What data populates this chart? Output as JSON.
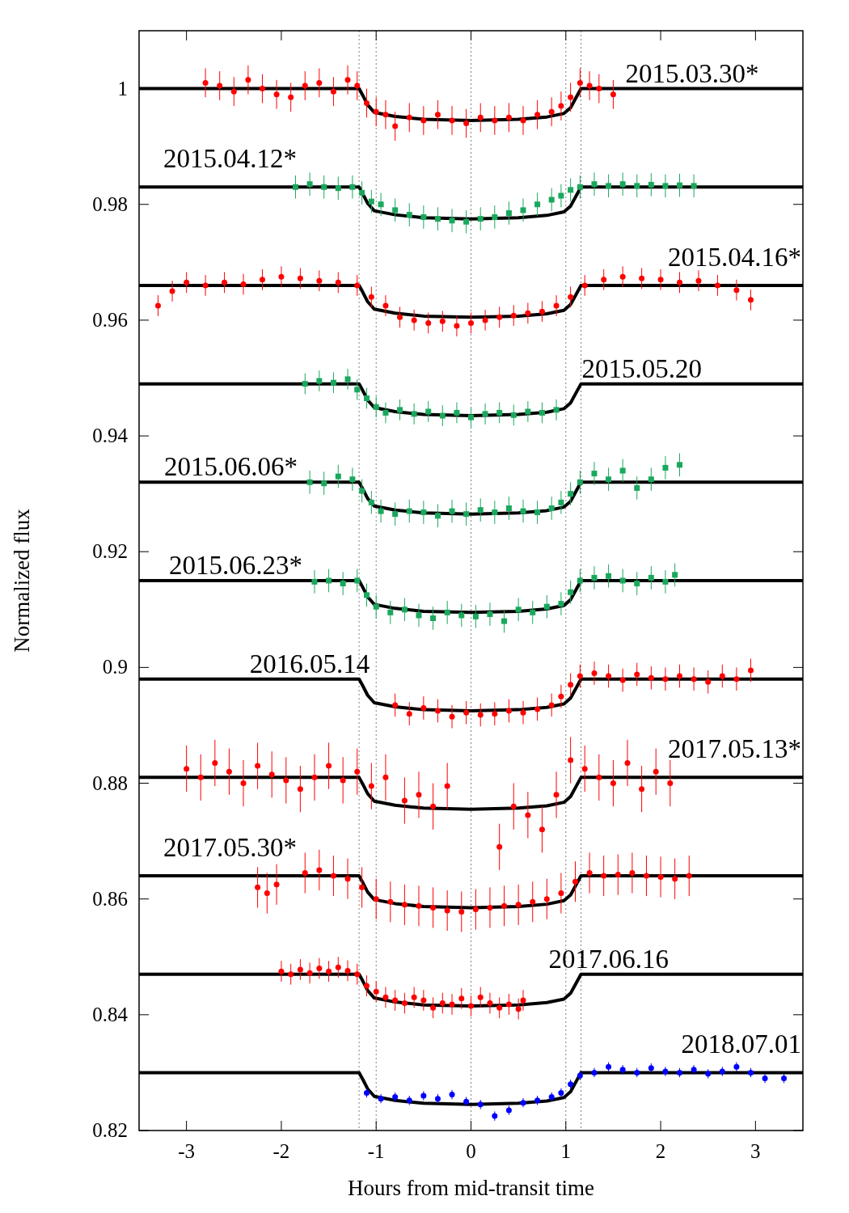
{
  "chart_data": {
    "type": "scatter",
    "xlabel": "Hours from mid-transit time",
    "ylabel": "Normalized flux",
    "xlim": [
      -3.5,
      3.5
    ],
    "ylim": [
      0.82,
      1.01
    ],
    "xticks": [
      -3,
      -2,
      -1,
      0,
      1,
      2,
      3
    ],
    "yticks": [
      0.82,
      0.84,
      0.86,
      0.88,
      0.9,
      0.92,
      0.94,
      0.96,
      0.98,
      1
    ],
    "grid": false,
    "legend": false,
    "marker": "circle",
    "x": [
      -3.5,
      -1.18,
      -1.14,
      -1.09,
      -1.02,
      -0.8,
      -0.5,
      0,
      0.5,
      0.8,
      0.98,
      1.05,
      1.11,
      1.16,
      3.5
    ],
    "ref_lines": [
      {
        "axis": "x",
        "value": -1.18,
        "color": "#808080",
        "line_style": "dotted"
      },
      {
        "axis": "x",
        "value": -1,
        "color": "#808080",
        "line_style": "dotted"
      },
      {
        "axis": "x",
        "value": 0,
        "color": "#808080",
        "line_style": "dotted"
      },
      {
        "axis": "x",
        "value": 1,
        "color": "#808080",
        "line_style": "dotted"
      },
      {
        "axis": "x",
        "value": 1.16,
        "color": "#808080",
        "line_style": "dotted"
      }
    ],
    "series": [
      {
        "name": "2015.03.30*",
        "color": "#ff0000",
        "x": [
          -2.8,
          -2.65,
          -2.5,
          -2.35,
          -2.2,
          -2.05,
          -1.9,
          -1.75,
          -1.6,
          -1.45,
          -1.3,
          -1.2,
          -1.1,
          -1.0,
          -0.9,
          -0.8,
          -0.65,
          -0.5,
          -0.35,
          -0.2,
          -0.05,
          0.1,
          0.25,
          0.4,
          0.55,
          0.7,
          0.85,
          0.95,
          1.05,
          1.15,
          1.25,
          1.35,
          1.5
        ],
        "values": [
          1.001,
          1.0005,
          0.9995,
          1.0015,
          1.0,
          0.999,
          0.9985,
          1.0005,
          1.001,
          0.9995,
          1.0015,
          1.0005,
          0.9975,
          0.996,
          0.9955,
          0.9935,
          0.995,
          0.9945,
          0.9955,
          0.9945,
          0.994,
          0.995,
          0.9945,
          0.995,
          0.9945,
          0.9955,
          0.996,
          0.997,
          0.9985,
          1.001,
          1.0005,
          1.0,
          0.999
        ],
        "errors": [
          0.0025,
          0.0025,
          0.0025,
          0.0025,
          0.0025,
          0.0025,
          0.0025,
          0.0025,
          0.0025,
          0.0025,
          0.0025,
          0.0025,
          0.0025,
          0.0025,
          0.0025,
          0.0025,
          0.0025,
          0.0025,
          0.0025,
          0.0025,
          0.0025,
          0.0025,
          0.0025,
          0.0025,
          0.0025,
          0.0025,
          0.0025,
          0.0025,
          0.0025,
          0.0025,
          0.0025,
          0.0025,
          0.0025
        ]
      },
      {
        "type": "line",
        "color": "#000000",
        "marker": "none",
        "values": [
          1,
          1,
          0.9988,
          0.9972,
          0.9959,
          0.9952,
          0.9947,
          0.9945,
          0.9947,
          0.9951,
          0.9957,
          0.9967,
          0.9985,
          1,
          1
        ]
      },
      {
        "name": "2015.04.12*",
        "color": "#1aa85e",
        "marker": "square",
        "x": [
          -1.85,
          -1.7,
          -1.55,
          -1.4,
          -1.25,
          -1.15,
          -1.05,
          -0.95,
          -0.8,
          -0.65,
          -0.5,
          -0.35,
          -0.2,
          -0.05,
          0.1,
          0.25,
          0.4,
          0.55,
          0.7,
          0.85,
          0.95,
          1.05,
          1.15,
          1.3,
          1.45,
          1.6,
          1.75,
          1.9,
          2.05,
          2.2,
          2.35
        ],
        "values": [
          0.983,
          0.9835,
          0.983,
          0.9828,
          0.983,
          0.982,
          0.9805,
          0.98,
          0.979,
          0.9782,
          0.9778,
          0.9775,
          0.9772,
          0.977,
          0.9775,
          0.9778,
          0.9785,
          0.979,
          0.98,
          0.9808,
          0.9815,
          0.9825,
          0.983,
          0.9835,
          0.9832,
          0.9835,
          0.9832,
          0.9834,
          0.9832,
          0.9833,
          0.9832
        ],
        "errors": [
          0.002,
          0.002,
          0.002,
          0.002,
          0.002,
          0.002,
          0.002,
          0.002,
          0.002,
          0.002,
          0.002,
          0.002,
          0.002,
          0.002,
          0.002,
          0.002,
          0.002,
          0.002,
          0.002,
          0.002,
          0.002,
          0.002,
          0.002,
          0.002,
          0.002,
          0.002,
          0.002,
          0.002,
          0.002,
          0.002,
          0.002
        ]
      },
      {
        "type": "line",
        "color": "#000000",
        "marker": "none",
        "values": [
          0.983,
          0.983,
          0.9818,
          0.9802,
          0.9789,
          0.9782,
          0.9777,
          0.9775,
          0.9777,
          0.9781,
          0.9787,
          0.9797,
          0.9815,
          0.983,
          0.983
        ]
      },
      {
        "name": "2015.04.16*",
        "color": "#ff0000",
        "x": [
          -3.3,
          -3.15,
          -3.0,
          -2.8,
          -2.6,
          -2.4,
          -2.2,
          -2.0,
          -1.8,
          -1.6,
          -1.4,
          -1.2,
          -1.05,
          -0.9,
          -0.75,
          -0.6,
          -0.45,
          -0.3,
          -0.15,
          0,
          0.15,
          0.3,
          0.45,
          0.6,
          0.75,
          0.9,
          1.05,
          1.2,
          1.4,
          1.6,
          1.8,
          2.0,
          2.2,
          2.4,
          2.6,
          2.8,
          2.95
        ],
        "values": [
          0.9625,
          0.965,
          0.9665,
          0.966,
          0.9665,
          0.9662,
          0.967,
          0.9675,
          0.9672,
          0.9668,
          0.9665,
          0.966,
          0.964,
          0.9625,
          0.9605,
          0.96,
          0.9595,
          0.9598,
          0.959,
          0.9595,
          0.96,
          0.9605,
          0.9608,
          0.9612,
          0.9615,
          0.9625,
          0.964,
          0.966,
          0.967,
          0.9675,
          0.9672,
          0.967,
          0.9665,
          0.9668,
          0.966,
          0.9652,
          0.9635
        ],
        "errors": [
          0.0018,
          0.0018,
          0.0018,
          0.0018,
          0.0018,
          0.0018,
          0.0018,
          0.0018,
          0.0018,
          0.0018,
          0.0018,
          0.0018,
          0.0018,
          0.0018,
          0.0018,
          0.0018,
          0.0018,
          0.0018,
          0.0018,
          0.0018,
          0.0018,
          0.0018,
          0.0018,
          0.0018,
          0.0018,
          0.0018,
          0.0018,
          0.0018,
          0.0018,
          0.0018,
          0.0018,
          0.0018,
          0.0018,
          0.0018,
          0.0018,
          0.0018,
          0.0018
        ]
      },
      {
        "type": "line",
        "color": "#000000",
        "marker": "none",
        "values": [
          0.966,
          0.966,
          0.9648,
          0.9632,
          0.9619,
          0.9612,
          0.9607,
          0.9605,
          0.9607,
          0.9611,
          0.9617,
          0.9627,
          0.9645,
          0.966,
          0.966
        ]
      },
      {
        "name": "2015.05.20",
        "color": "#1aa85e",
        "marker": "square",
        "x": [
          -1.75,
          -1.6,
          -1.45,
          -1.3,
          -1.2,
          -1.1,
          -1.0,
          -0.9,
          -0.75,
          -0.6,
          -0.45,
          -0.3,
          -0.15,
          0,
          0.15,
          0.3,
          0.45,
          0.6,
          0.75,
          0.9
        ],
        "values": [
          0.949,
          0.9495,
          0.9492,
          0.9498,
          0.948,
          0.9465,
          0.945,
          0.944,
          0.9445,
          0.9438,
          0.9442,
          0.9435,
          0.944,
          0.9432,
          0.9438,
          0.944,
          0.9436,
          0.9442,
          0.944,
          0.9445
        ],
        "errors": [
          0.0018,
          0.0018,
          0.0018,
          0.0018,
          0.0018,
          0.0018,
          0.0018,
          0.0018,
          0.0018,
          0.0018,
          0.0018,
          0.0018,
          0.0018,
          0.0018,
          0.0018,
          0.0018,
          0.0018,
          0.0018,
          0.0018,
          0.0018
        ]
      },
      {
        "type": "line",
        "color": "#000000",
        "marker": "none",
        "values": [
          0.949,
          0.949,
          0.9478,
          0.9462,
          0.9449,
          0.9442,
          0.9437,
          0.9435,
          0.9437,
          0.9441,
          0.9447,
          0.9457,
          0.9475,
          0.949,
          0.949
        ]
      },
      {
        "name": "2015.06.06*",
        "color": "#1aa85e",
        "marker": "square",
        "x": [
          -1.7,
          -1.55,
          -1.4,
          -1.25,
          -1.15,
          -1.05,
          -0.95,
          -0.8,
          -0.65,
          -0.5,
          -0.35,
          -0.2,
          -0.05,
          0.1,
          0.25,
          0.4,
          0.55,
          0.7,
          0.85,
          0.95,
          1.05,
          1.15,
          1.3,
          1.45,
          1.6,
          1.75,
          1.9,
          2.05,
          2.2
        ],
        "values": [
          0.932,
          0.9318,
          0.933,
          0.9325,
          0.9305,
          0.9285,
          0.927,
          0.9265,
          0.927,
          0.9268,
          0.9262,
          0.927,
          0.9265,
          0.9272,
          0.9268,
          0.9275,
          0.927,
          0.9268,
          0.9275,
          0.9285,
          0.93,
          0.932,
          0.9335,
          0.9325,
          0.934,
          0.931,
          0.9325,
          0.9345,
          0.935
        ],
        "errors": [
          0.002,
          0.002,
          0.002,
          0.002,
          0.002,
          0.002,
          0.002,
          0.002,
          0.002,
          0.002,
          0.002,
          0.002,
          0.002,
          0.002,
          0.002,
          0.002,
          0.002,
          0.002,
          0.002,
          0.002,
          0.002,
          0.002,
          0.002,
          0.002,
          0.002,
          0.002,
          0.002,
          0.002,
          0.002
        ]
      },
      {
        "type": "line",
        "color": "#000000",
        "marker": "none",
        "values": [
          0.932,
          0.932,
          0.9308,
          0.9292,
          0.9279,
          0.9272,
          0.9267,
          0.9265,
          0.9267,
          0.9271,
          0.9277,
          0.9287,
          0.9305,
          0.932,
          0.932
        ]
      },
      {
        "name": "2015.06.23*",
        "color": "#1aa85e",
        "marker": "square",
        "x": [
          -1.65,
          -1.5,
          -1.35,
          -1.2,
          -1.1,
          -1.0,
          -0.85,
          -0.7,
          -0.55,
          -0.4,
          -0.25,
          -0.1,
          0.05,
          0.2,
          0.35,
          0.5,
          0.65,
          0.8,
          0.95,
          1.05,
          1.15,
          1.3,
          1.45,
          1.6,
          1.75,
          1.9,
          2.05,
          2.15
        ],
        "values": [
          0.9148,
          0.915,
          0.9145,
          0.915,
          0.9125,
          0.9105,
          0.9095,
          0.91,
          0.909,
          0.9085,
          0.9095,
          0.909,
          0.9088,
          0.9092,
          0.908,
          0.91,
          0.9095,
          0.9105,
          0.911,
          0.913,
          0.915,
          0.9155,
          0.9158,
          0.915,
          0.9145,
          0.9155,
          0.9148,
          0.916
        ],
        "errors": [
          0.002,
          0.002,
          0.002,
          0.002,
          0.002,
          0.002,
          0.002,
          0.002,
          0.002,
          0.002,
          0.002,
          0.002,
          0.002,
          0.002,
          0.002,
          0.002,
          0.002,
          0.002,
          0.002,
          0.002,
          0.002,
          0.002,
          0.002,
          0.002,
          0.002,
          0.002,
          0.002,
          0.002
        ]
      },
      {
        "type": "line",
        "color": "#000000",
        "marker": "none",
        "values": [
          0.915,
          0.915,
          0.9138,
          0.9122,
          0.9109,
          0.9102,
          0.9097,
          0.9095,
          0.9097,
          0.9101,
          0.9107,
          0.9117,
          0.9135,
          0.915,
          0.915
        ]
      },
      {
        "name": "2016.05.14",
        "color": "#ff0000",
        "x": [
          -0.8,
          -0.65,
          -0.5,
          -0.35,
          -0.2,
          -0.05,
          0.1,
          0.25,
          0.4,
          0.55,
          0.7,
          0.85,
          0.95,
          1.05,
          1.15,
          1.3,
          1.45,
          1.6,
          1.75,
          1.9,
          2.05,
          2.2,
          2.35,
          2.5,
          2.65,
          2.8,
          2.95
        ],
        "values": [
          0.8935,
          0.892,
          0.893,
          0.8925,
          0.8915,
          0.8922,
          0.8918,
          0.892,
          0.8925,
          0.8922,
          0.8928,
          0.8935,
          0.895,
          0.897,
          0.8985,
          0.899,
          0.8985,
          0.8978,
          0.8988,
          0.8982,
          0.898,
          0.8985,
          0.898,
          0.8975,
          0.8985,
          0.898,
          0.8995
        ],
        "errors": [
          0.002,
          0.002,
          0.002,
          0.002,
          0.002,
          0.002,
          0.002,
          0.002,
          0.002,
          0.002,
          0.002,
          0.002,
          0.002,
          0.002,
          0.002,
          0.002,
          0.002,
          0.002,
          0.002,
          0.002,
          0.002,
          0.002,
          0.002,
          0.002,
          0.002,
          0.002,
          0.002
        ]
      },
      {
        "type": "line",
        "color": "#000000",
        "marker": "none",
        "values": [
          0.898,
          0.898,
          0.8968,
          0.8952,
          0.8939,
          0.8932,
          0.8927,
          0.8925,
          0.8927,
          0.8931,
          0.8937,
          0.8947,
          0.8965,
          0.898,
          0.898
        ]
      },
      {
        "name": "2017.05.13*",
        "color": "#ff0000",
        "x": [
          -3.0,
          -2.85,
          -2.7,
          -2.55,
          -2.4,
          -2.25,
          -2.1,
          -1.95,
          -1.8,
          -1.65,
          -1.5,
          -1.35,
          -1.2,
          -1.05,
          -0.9,
          -0.7,
          -0.55,
          -0.4,
          -0.25,
          0.3,
          0.45,
          0.6,
          0.75,
          0.9,
          1.05,
          1.2,
          1.35,
          1.5,
          1.65,
          1.8,
          1.95,
          2.1
        ],
        "values": [
          0.8825,
          0.881,
          0.8835,
          0.882,
          0.88,
          0.883,
          0.8815,
          0.8805,
          0.879,
          0.881,
          0.883,
          0.8805,
          0.882,
          0.8795,
          0.881,
          0.877,
          0.878,
          0.876,
          0.8795,
          0.869,
          0.876,
          0.8745,
          0.872,
          0.878,
          0.884,
          0.8825,
          0.881,
          0.88,
          0.8835,
          0.879,
          0.882,
          0.88
        ],
        "errors": [
          0.004,
          0.004,
          0.004,
          0.004,
          0.004,
          0.004,
          0.004,
          0.004,
          0.004,
          0.004,
          0.004,
          0.004,
          0.004,
          0.004,
          0.004,
          0.004,
          0.004,
          0.004,
          0.004,
          0.004,
          0.004,
          0.004,
          0.004,
          0.004,
          0.004,
          0.004,
          0.004,
          0.004,
          0.004,
          0.004,
          0.004,
          0.004
        ]
      },
      {
        "type": "line",
        "color": "#000000",
        "marker": "none",
        "values": [
          0.881,
          0.881,
          0.8798,
          0.8782,
          0.8769,
          0.8762,
          0.8757,
          0.8755,
          0.8757,
          0.8761,
          0.8767,
          0.8777,
          0.8795,
          0.881,
          0.881
        ]
      },
      {
        "name": "2017.05.30*",
        "color": "#ff0000",
        "x": [
          -2.25,
          -2.15,
          -2.05,
          -1.75,
          -1.6,
          -1.45,
          -1.3,
          -1.15,
          -1.0,
          -0.85,
          -0.7,
          -0.55,
          -0.4,
          -0.25,
          -0.1,
          0.05,
          0.2,
          0.35,
          0.5,
          0.65,
          0.8,
          0.95,
          1.1,
          1.25,
          1.4,
          1.55,
          1.7,
          1.85,
          2.0,
          2.15,
          2.3
        ],
        "values": [
          0.862,
          0.861,
          0.8625,
          0.8645,
          0.865,
          0.864,
          0.8635,
          0.862,
          0.86,
          0.8595,
          0.859,
          0.8588,
          0.8585,
          0.858,
          0.8578,
          0.8582,
          0.8585,
          0.8588,
          0.859,
          0.8595,
          0.86,
          0.861,
          0.863,
          0.8645,
          0.864,
          0.8642,
          0.8645,
          0.864,
          0.8638,
          0.8635,
          0.864
        ],
        "errors": [
          0.0035,
          0.0035,
          0.0035,
          0.0035,
          0.0035,
          0.0035,
          0.0035,
          0.0035,
          0.0035,
          0.0035,
          0.0035,
          0.0035,
          0.0035,
          0.0035,
          0.0035,
          0.0035,
          0.0035,
          0.0035,
          0.0035,
          0.0035,
          0.0035,
          0.0035,
          0.0035,
          0.0035,
          0.0035,
          0.0035,
          0.0035,
          0.0035,
          0.0035,
          0.0035,
          0.0035
        ]
      },
      {
        "type": "line",
        "color": "#000000",
        "marker": "none",
        "values": [
          0.864,
          0.864,
          0.8628,
          0.8612,
          0.8599,
          0.8592,
          0.8587,
          0.8585,
          0.8587,
          0.8591,
          0.8597,
          0.8607,
          0.8625,
          0.864,
          0.864
        ]
      },
      {
        "name": "2017.06.16",
        "color": "#ff0000",
        "x": [
          -2.0,
          -1.9,
          -1.8,
          -1.7,
          -1.6,
          -1.5,
          -1.4,
          -1.3,
          -1.2,
          -1.1,
          -1.0,
          -0.9,
          -0.8,
          -0.7,
          -0.6,
          -0.5,
          -0.4,
          -0.3,
          -0.2,
          -0.1,
          0,
          0.1,
          0.2,
          0.3,
          0.4,
          0.5,
          0.55
        ],
        "values": [
          0.8475,
          0.847,
          0.8478,
          0.8472,
          0.848,
          0.8475,
          0.8482,
          0.8476,
          0.847,
          0.845,
          0.844,
          0.843,
          0.8425,
          0.842,
          0.843,
          0.8425,
          0.8412,
          0.842,
          0.8418,
          0.8428,
          0.8415,
          0.843,
          0.842,
          0.8412,
          0.8418,
          0.841,
          0.8425
        ],
        "errors": [
          0.0018,
          0.0018,
          0.0018,
          0.0018,
          0.0018,
          0.0018,
          0.0018,
          0.0018,
          0.0018,
          0.0018,
          0.0018,
          0.0018,
          0.0018,
          0.0018,
          0.0018,
          0.0018,
          0.0018,
          0.0018,
          0.0018,
          0.0018,
          0.0018,
          0.0018,
          0.0018,
          0.0018,
          0.0018,
          0.0018,
          0.0018
        ]
      },
      {
        "type": "line",
        "color": "#000000",
        "marker": "none",
        "values": [
          0.847,
          0.847,
          0.8458,
          0.8442,
          0.8429,
          0.8422,
          0.8417,
          0.8415,
          0.8417,
          0.8421,
          0.8427,
          0.8437,
          0.8455,
          0.847,
          0.847
        ]
      },
      {
        "name": "2018.07.01",
        "color": "#0000ff",
        "x": [
          -1.1,
          -0.95,
          -0.8,
          -0.65,
          -0.5,
          -0.35,
          -0.2,
          -0.05,
          0.1,
          0.25,
          0.4,
          0.55,
          0.7,
          0.85,
          0.95,
          1.05,
          1.15,
          1.3,
          1.45,
          1.6,
          1.75,
          1.9,
          2.05,
          2.2,
          2.35,
          2.5,
          2.65,
          2.8,
          2.95,
          3.1,
          3.3
        ],
        "values": [
          0.8265,
          0.8255,
          0.8258,
          0.8252,
          0.826,
          0.8255,
          0.8262,
          0.825,
          0.8245,
          0.8225,
          0.8235,
          0.8248,
          0.8252,
          0.8258,
          0.8265,
          0.828,
          0.8295,
          0.83,
          0.831,
          0.8305,
          0.83,
          0.8308,
          0.8302,
          0.83,
          0.8305,
          0.8298,
          0.8302,
          0.831,
          0.83,
          0.829,
          0.829
        ],
        "errors": [
          0.0008,
          0.0008,
          0.0008,
          0.0008,
          0.0008,
          0.0008,
          0.0008,
          0.0008,
          0.0008,
          0.0008,
          0.0008,
          0.0008,
          0.0008,
          0.0008,
          0.0008,
          0.0008,
          0.0008,
          0.0008,
          0.0008,
          0.0008,
          0.0008,
          0.0008,
          0.0008,
          0.0008,
          0.0008,
          0.0008,
          0.0008,
          0.0008,
          0.0008,
          0.0008,
          0.0008
        ]
      },
      {
        "type": "line",
        "color": "#000000",
        "marker": "none",
        "values": [
          0.83,
          0.83,
          0.8288,
          0.8272,
          0.8259,
          0.8252,
          0.8247,
          0.8245,
          0.8247,
          0.8251,
          0.8257,
          0.8267,
          0.8285,
          0.83,
          0.83
        ]
      }
    ]
  }
}
